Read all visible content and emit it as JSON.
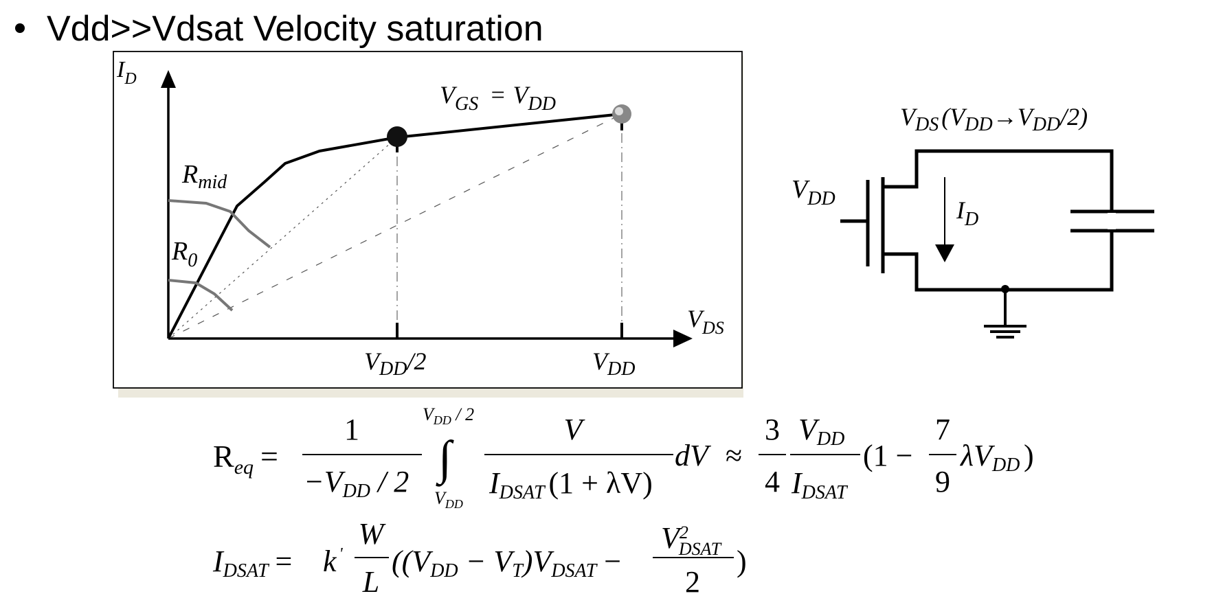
{
  "slide": {
    "bullet_text": "Vdd>>Vdsat  Velocity saturation"
  },
  "plot": {
    "y_axis_main": "I",
    "y_axis_sub": "D",
    "x_axis_main": "V",
    "x_axis_sub": "DS",
    "curve_label_main": "V",
    "curve_label_sub1": "GS",
    "curve_label_eq": "=",
    "curve_label_main2": "V",
    "curve_label_sub2": "DD",
    "r_mid_main": "R",
    "r_mid_sub": "mid",
    "r0_main": "R",
    "r0_sub": "0",
    "tick_half_main": "V",
    "tick_half_sub": "DD",
    "tick_half_suffix": "/2",
    "tick_full_main": "V",
    "tick_full_sub": "DD"
  },
  "circuit": {
    "label_vds": "V",
    "label_vds_sub": "DS",
    "label_paren_open": "(",
    "label_v1": "V",
    "label_v1_sub": "DD",
    "label_arrow": "→",
    "label_v2": "V",
    "label_v2_sub": "DD",
    "label_tail": "/2)",
    "gate_label": "V",
    "gate_label_sub": "DD",
    "current_label": "I",
    "current_label_sub": "D"
  },
  "equations": {
    "req_lhs": "R",
    "req_lhs_sub": "eq",
    "eq": "=",
    "frac1_num": "1",
    "frac1_den_minus": "−V",
    "frac1_den_sub": "DD",
    "frac1_den_tail": " / 2",
    "int_upper": "V",
    "int_upper_sub": "DD",
    "int_upper_tail": " / 2",
    "int_lower": "V",
    "int_lower_sub": "DD",
    "integral_sign": "∫",
    "frac2_num": "V",
    "frac2_den_I": "I",
    "frac2_den_sub": "DSAT",
    "frac2_den_tail": "(1 + λV)",
    "dv": "dV",
    "approx": "≈",
    "frac3_num": "3",
    "frac3_den": "4",
    "frac4_num": "V",
    "frac4_num_sub": "DD",
    "frac4_den": "I",
    "frac4_den_sub": "DSAT",
    "paren_open": "(1 −",
    "frac5_num": "7",
    "frac5_den": "9",
    "lambda_v": "λV",
    "lambda_v_sub": "DD",
    "paren_close": ")",
    "idsat_lhs": "I",
    "idsat_lhs_sub": "DSAT",
    "idsat_eq": "=",
    "k_prime": "k",
    "prime": "'",
    "w": "W",
    "l": "L",
    "open_paren": "((V",
    "vdd_sub": "DD",
    "minus_vt": " − V",
    "vt_sub": "T",
    "close_vdsat": ")V",
    "vdsat_sub": "DSAT",
    "minus": " −",
    "v2_num": "V",
    "v2_num_sup": "2",
    "v2_num_sub": "DSAT",
    "v2_den": "2",
    "final_paren": ")"
  }
}
